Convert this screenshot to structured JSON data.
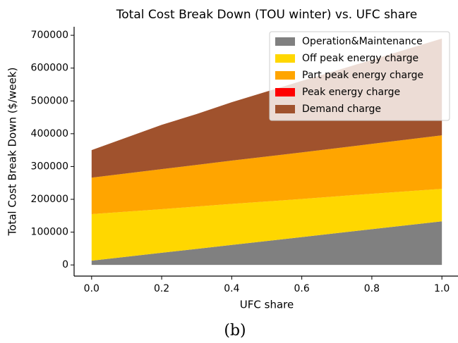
{
  "chart_data": {
    "type": "stacked_area",
    "title": "Total Cost Break Down (TOU winter) vs. UFC share",
    "xlabel": "UFC share",
    "ylabel": "Total Cost Break Down ($/week)",
    "caption": "(b)",
    "x": [
      0,
      0.2,
      0.3,
      0.4,
      0.6,
      0.8,
      1.0
    ],
    "series": [
      {
        "name": "Operation&Maintenance",
        "color": "#808080",
        "values": [
          13000,
          37000,
          49000,
          61000,
          85000,
          109000,
          133000
        ]
      },
      {
        "name": "Off peak energy charge",
        "color": "#ffd700",
        "values": [
          142000,
          133000,
          129000,
          125000,
          116000,
          108000,
          99000
        ]
      },
      {
        "name": "Part peak energy charge",
        "color": "#ffa500",
        "values": [
          111000,
          122000,
          127000,
          132000,
          142000,
          152000,
          163000
        ]
      },
      {
        "name": "Peak energy charge",
        "color": "#ff0000",
        "values": [
          0,
          0,
          0,
          0,
          0,
          0,
          0
        ]
      },
      {
        "name": "Demand charge",
        "color": "#a0522d",
        "values": [
          84000,
          135000,
          155000,
          178000,
          218000,
          256000,
          295000
        ]
      }
    ],
    "xlim": [
      -0.05,
      1.05
    ],
    "ylim": [
      -34000,
      726000
    ],
    "xticks": [
      {
        "value": 0,
        "label": "0.0"
      },
      0.2,
      0.4,
      0.6,
      0.8,
      {
        "value": 1.0,
        "label": "1.0"
      }
    ],
    "yticks": [
      0,
      100000,
      200000,
      300000,
      400000,
      500000,
      600000,
      700000
    ],
    "legend": "upper right"
  }
}
